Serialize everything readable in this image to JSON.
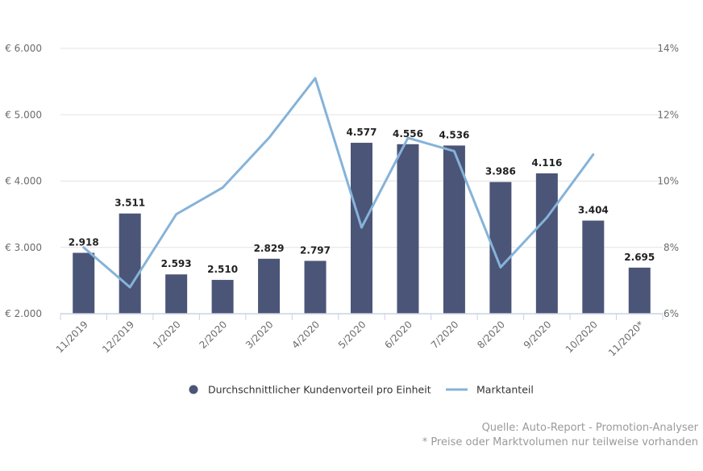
{
  "chart_data": {
    "type": "bar",
    "categories": [
      "11/2019",
      "12/2019",
      "1/2020",
      "2/2020",
      "3/2020",
      "4/2020",
      "5/2020",
      "6/2020",
      "7/2020",
      "8/2020",
      "9/2020",
      "10/2020",
      "11/2020*"
    ],
    "series": [
      {
        "name": "Durchschnittlicher Kundenvorteil pro Einheit",
        "type": "bar",
        "axis": "left",
        "color": "#4b5578",
        "values": [
          2918,
          3511,
          2593,
          2510,
          2829,
          2797,
          4577,
          4556,
          4536,
          3986,
          4116,
          3404,
          2695
        ],
        "labels": [
          "2.918",
          "3.511",
          "2.593",
          "2.510",
          "2.829",
          "2.797",
          "4.577",
          "4.556",
          "4.536",
          "3.986",
          "4.116",
          "3.404",
          "2.695"
        ]
      },
      {
        "name": "Marktanteil",
        "type": "line",
        "axis": "right",
        "color": "#85b3d9",
        "values": [
          8.0,
          6.8,
          9.0,
          9.8,
          11.3,
          13.1,
          8.6,
          11.3,
          10.9,
          7.4,
          8.9,
          10.8,
          null
        ]
      }
    ],
    "y_left": {
      "ylim": [
        2000,
        6000
      ],
      "ticks": [
        2000,
        3000,
        4000,
        5000,
        6000
      ],
      "tick_labels": [
        "€ 2.000",
        "€ 3.000",
        "€ 4.000",
        "€ 5.000",
        "€ 6.000"
      ]
    },
    "y_right": {
      "ylim": [
        6,
        14
      ],
      "ticks": [
        6,
        8,
        10,
        12,
        14
      ],
      "tick_labels": [
        "6%",
        "8%",
        "10%",
        "12%",
        "14%"
      ]
    },
    "grid": true,
    "legend_position": "bottom"
  },
  "source": {
    "line1": "Quelle: Auto-Report - Promotion-Analyser",
    "line2": "* Preise oder Marktvolumen nur teilweise vorhanden"
  }
}
